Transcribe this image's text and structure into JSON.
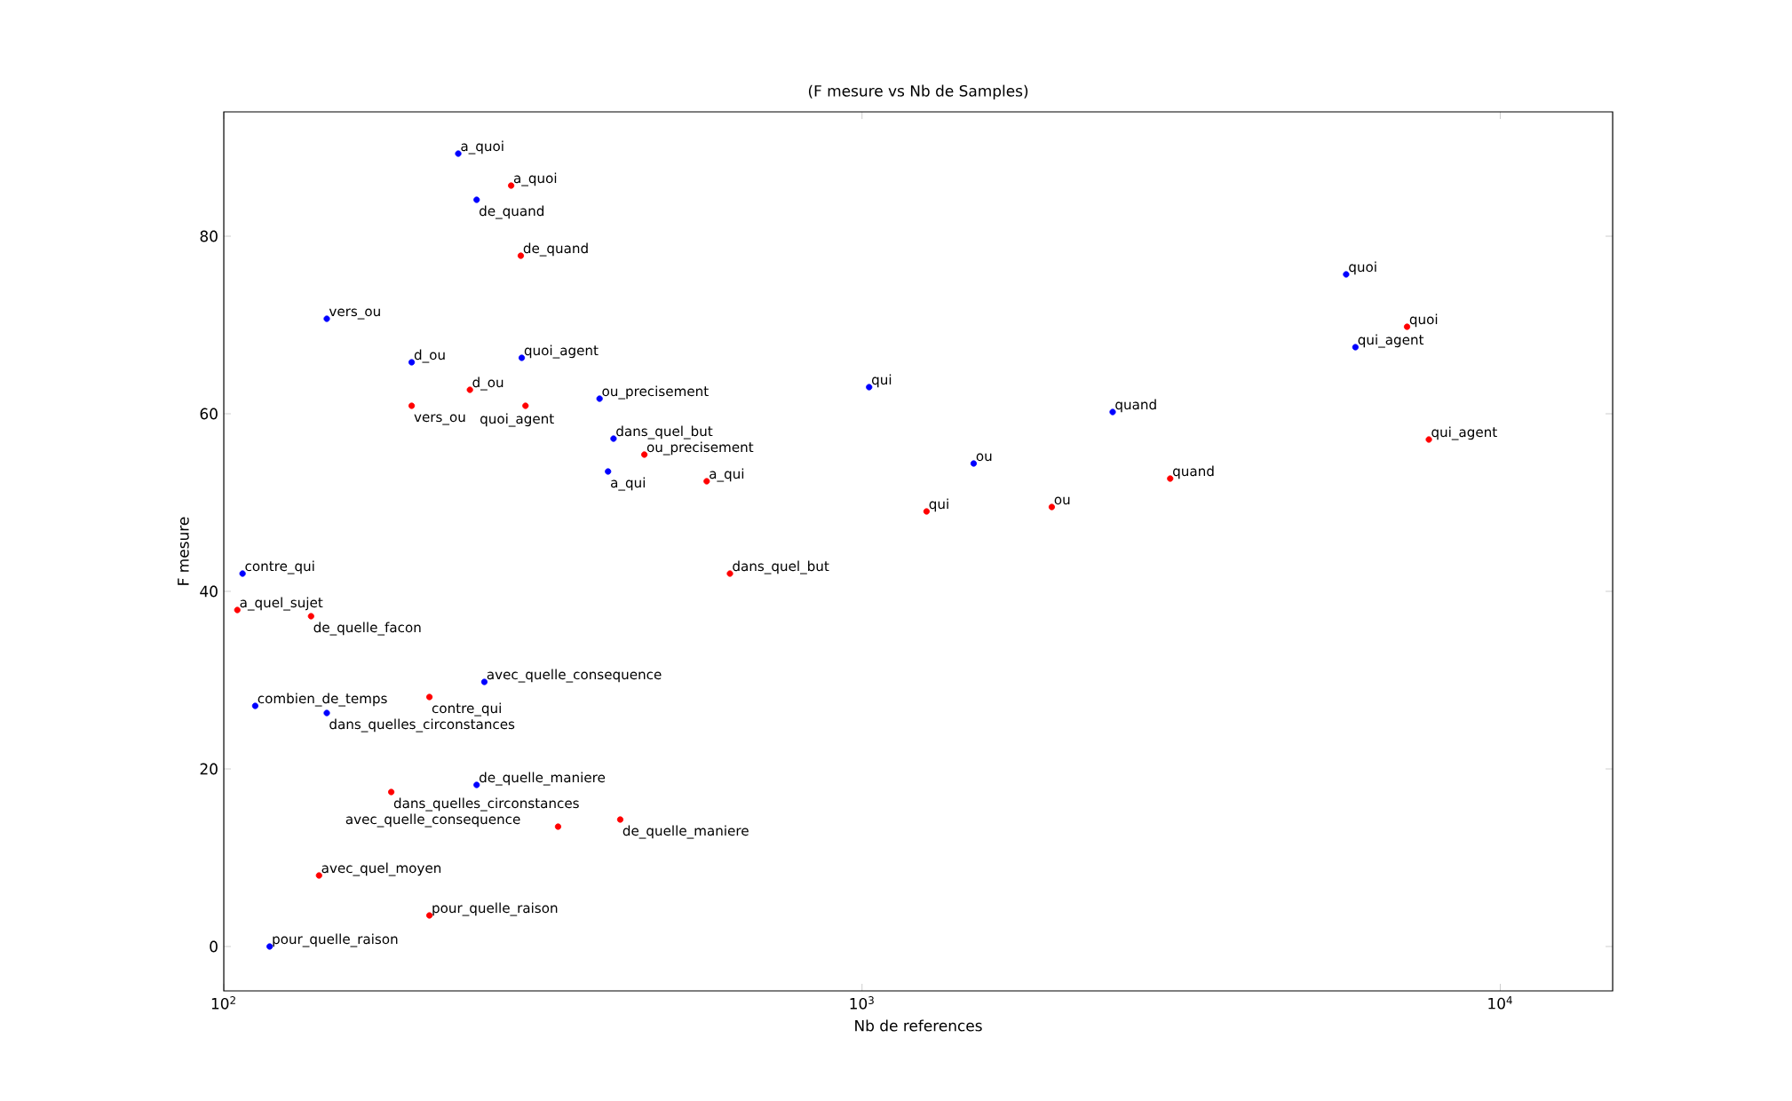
{
  "chart_data": {
    "type": "scatter",
    "title": "(F mesure vs Nb de Samples)",
    "xlabel": "Nb de references",
    "ylabel": "F mesure",
    "log": "x",
    "marker": "circle",
    "xlim": [
      100,
      15000
    ],
    "ylim": [
      -5,
      94
    ],
    "xticks": [
      {
        "value": 100,
        "label": "10$^{2}$"
      },
      {
        "value": 1000,
        "label": "10$^{3}$"
      },
      {
        "value": 10000,
        "label": "10$^{4}$"
      }
    ],
    "yticks": [
      0,
      20,
      40,
      60,
      80
    ],
    "series": [
      {
        "color": "#0000ff",
        "x": [
          233,
          249,
          145,
          197,
          293,
          388,
          408,
          400,
          1026,
          1496,
          2470,
          5735,
          5930,
          107,
          112,
          145,
          256,
          249,
          118
        ],
        "values": [
          89.3,
          84.1,
          70.7,
          65.8,
          66.3,
          61.7,
          57.2,
          53.5,
          63.0,
          54.4,
          60.2,
          75.7,
          67.5,
          42.0,
          27.1,
          26.3,
          29.8,
          18.2,
          0
        ]
      },
      {
        "color": "#ff0000",
        "x": [
          282,
          292,
          243,
          197,
          297,
          456,
          571,
          1262,
          1983,
          3040,
          7145,
          7730,
          621,
          105,
          137,
          210,
          183,
          418,
          334,
          141,
          210
        ],
        "values": [
          85.7,
          77.8,
          62.7,
          60.9,
          60.9,
          55.4,
          52.4,
          49.0,
          49.5,
          52.7,
          69.8,
          57.1,
          42.0,
          37.9,
          37.2,
          28.1,
          17.4,
          14.3,
          13.5,
          8.0,
          3.5
        ]
      }
    ],
    "annotations": [
      {
        "text": "a_quoi",
        "x": 233,
        "y": 89.3
      },
      {
        "text": "de_quand",
        "x": 249,
        "y": 84.1
      },
      {
        "text": "vers_ou",
        "x": 145,
        "y": 70.7
      },
      {
        "text": "d_ou",
        "x": 197,
        "y": 65.8
      },
      {
        "text": "quoi_agent",
        "x": 293,
        "y": 66.3
      },
      {
        "text": "ou_precisement",
        "x": 388,
        "y": 61.7
      },
      {
        "text": "dans_quel_but",
        "x": 408,
        "y": 57.2
      },
      {
        "text": "a_qui",
        "x": 400,
        "y": 53.5
      },
      {
        "text": "qui",
        "x": 1026,
        "y": 63.0
      },
      {
        "text": "ou",
        "x": 1496,
        "y": 54.4
      },
      {
        "text": "quand",
        "x": 2470,
        "y": 60.2
      },
      {
        "text": "quoi",
        "x": 5735,
        "y": 75.7
      },
      {
        "text": "qui_agent",
        "x": 5930,
        "y": 67.5
      },
      {
        "text": "contre_qui",
        "x": 107,
        "y": 42.0
      },
      {
        "text": "combien_de_temps",
        "x": 112,
        "y": 27.1
      },
      {
        "text": "dans_quelles_circonstances",
        "x": 145,
        "y": 26.3
      },
      {
        "text": "avec_quelle_consequence",
        "x": 256,
        "y": 29.8
      },
      {
        "text": "de_quelle_maniere",
        "x": 249,
        "y": 18.2
      },
      {
        "text": "pour_quelle_raison",
        "x": 118,
        "y": 0
      },
      {
        "text": "a_quoi",
        "x": 282,
        "y": 85.7
      },
      {
        "text": "de_quand",
        "x": 292,
        "y": 77.8
      },
      {
        "text": "d_ou",
        "x": 243,
        "y": 62.7
      },
      {
        "text": "vers_ou",
        "x": 197,
        "y": 60.9
      },
      {
        "text": "quoi_agent",
        "x": 297,
        "y": 60.9
      },
      {
        "text": "ou_precisement",
        "x": 456,
        "y": 55.4
      },
      {
        "text": "a_qui",
        "x": 571,
        "y": 52.4
      },
      {
        "text": "qui",
        "x": 1262,
        "y": 49.0
      },
      {
        "text": "ou",
        "x": 1983,
        "y": 49.5
      },
      {
        "text": "quand",
        "x": 3040,
        "y": 52.7
      },
      {
        "text": "quoi",
        "x": 7145,
        "y": 69.8
      },
      {
        "text": "qui_agent",
        "x": 7730,
        "y": 57.1
      },
      {
        "text": "dans_quel_but",
        "x": 621,
        "y": 42.0
      },
      {
        "text": "a_quel_sujet",
        "x": 105,
        "y": 37.9
      },
      {
        "text": "de_quelle_facon",
        "x": 137,
        "y": 37.2
      },
      {
        "text": "contre_qui",
        "x": 210,
        "y": 28.1
      },
      {
        "text": "dans_quelles_circonstances",
        "x": 183,
        "y": 17.4
      },
      {
        "text": "de_quelle_maniere",
        "x": 418,
        "y": 14.3
      },
      {
        "text": "avec_quelle_consequence",
        "x": 334,
        "y": 13.5
      },
      {
        "text": "avec_quel_moyen",
        "x": 141,
        "y": 8.0
      },
      {
        "text": "pour_quelle_raison",
        "x": 210,
        "y": 3.5
      }
    ]
  }
}
